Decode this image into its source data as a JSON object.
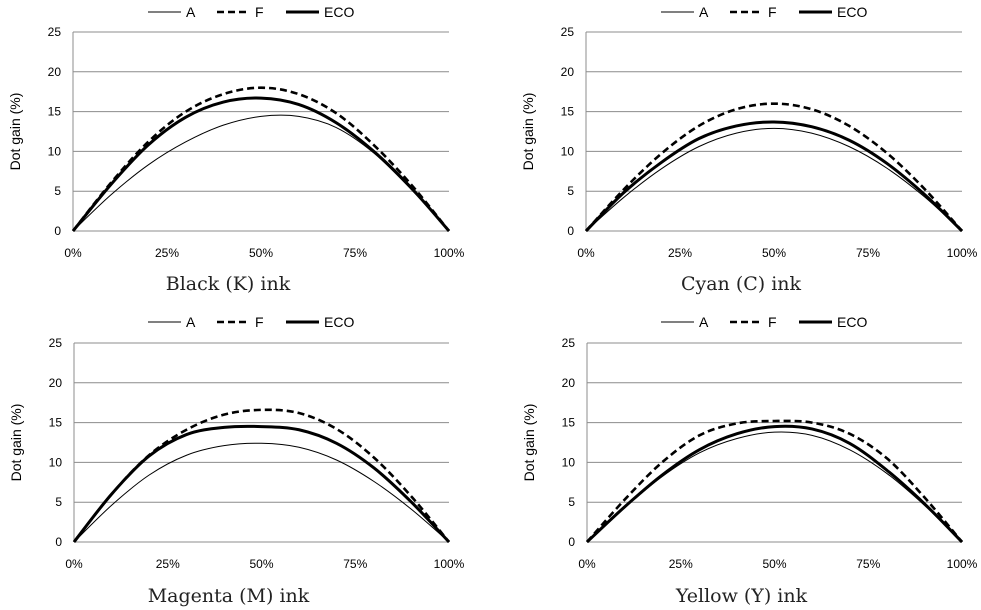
{
  "chart_data": [
    {
      "type": "line",
      "caption": "Black (K) ink",
      "ylabel": "Dot gain (%)",
      "ylim": [
        0,
        25
      ],
      "yticks": [
        "0",
        "5",
        "10",
        "15",
        "20",
        "25"
      ],
      "xticks": [
        "0%",
        "25%",
        "50%",
        "75%",
        "100%"
      ],
      "x": [
        0,
        10,
        20,
        30,
        40,
        50,
        60,
        70,
        80,
        90,
        100
      ],
      "legend": "top",
      "grid": true,
      "series": [
        {
          "name": "A",
          "style": "thin",
          "values": [
            0,
            4.5,
            8.3,
            11.2,
            13.3,
            14.4,
            14.4,
            13.0,
            9.8,
            5.2,
            0
          ]
        },
        {
          "name": "F",
          "style": "dashed",
          "values": [
            0,
            6.0,
            11.2,
            15.0,
            17.2,
            18.0,
            17.2,
            14.8,
            10.8,
            5.8,
            0
          ]
        },
        {
          "name": "ECO",
          "style": "thick",
          "values": [
            0,
            5.8,
            10.8,
            14.3,
            16.2,
            16.7,
            15.9,
            13.6,
            10.0,
            5.4,
            0
          ]
        }
      ]
    },
    {
      "type": "line",
      "caption": "Cyan (C) ink",
      "ylabel": "Dot gain (%)",
      "ylim": [
        0,
        25
      ],
      "yticks": [
        "0",
        "5",
        "10",
        "15",
        "20",
        "25"
      ],
      "xticks": [
        "0%",
        "25%",
        "50%",
        "75%",
        "100%"
      ],
      "x": [
        0,
        10,
        20,
        30,
        40,
        50,
        60,
        70,
        80,
        90,
        100
      ],
      "legend": "top",
      "grid": true,
      "series": [
        {
          "name": "A",
          "style": "thin",
          "values": [
            0,
            4.2,
            7.8,
            10.6,
            12.3,
            12.9,
            12.3,
            10.6,
            7.9,
            4.3,
            0
          ]
        },
        {
          "name": "F",
          "style": "dashed",
          "values": [
            0,
            5.2,
            9.7,
            13.2,
            15.3,
            16.0,
            15.3,
            13.2,
            9.8,
            5.3,
            0
          ]
        },
        {
          "name": "ECO",
          "style": "thick",
          "values": [
            0,
            4.8,
            8.6,
            11.6,
            13.2,
            13.7,
            13.1,
            11.4,
            8.5,
            4.6,
            0
          ]
        }
      ]
    },
    {
      "type": "line",
      "caption": "Magenta (M) ink",
      "ylabel": "Dot gain (%)",
      "ylim": [
        0,
        25
      ],
      "yticks": [
        "0",
        "5",
        "10",
        "15",
        "20",
        "25"
      ],
      "xticks": [
        "0%",
        "25%",
        "50%",
        "75%",
        "100%"
      ],
      "x": [
        0,
        10,
        20,
        30,
        40,
        50,
        60,
        70,
        80,
        90,
        100
      ],
      "legend": "top",
      "grid": true,
      "series": [
        {
          "name": "A",
          "style": "thin",
          "values": [
            0,
            4.6,
            8.4,
            10.9,
            12.1,
            12.4,
            11.9,
            10.3,
            7.6,
            4.1,
            0
          ]
        },
        {
          "name": "F",
          "style": "dashed",
          "values": [
            0,
            6.0,
            10.9,
            14.1,
            16.0,
            16.6,
            16.2,
            14.2,
            10.6,
            5.7,
            0
          ]
        },
        {
          "name": "ECO",
          "style": "thick",
          "values": [
            0,
            6.0,
            10.8,
            13.5,
            14.4,
            14.5,
            14.1,
            12.4,
            9.3,
            5.0,
            0
          ]
        }
      ]
    },
    {
      "type": "line",
      "caption": "Yellow (Y) ink",
      "ylabel": "Dot gain (%)",
      "ylim": [
        0,
        25
      ],
      "yticks": [
        "0",
        "5",
        "10",
        "15",
        "20",
        "25"
      ],
      "xticks": [
        "0%",
        "25%",
        "50%",
        "75%",
        "100%"
      ],
      "x": [
        0,
        10,
        20,
        30,
        40,
        50,
        60,
        70,
        80,
        90,
        100
      ],
      "legend": "top",
      "grid": true,
      "series": [
        {
          "name": "A",
          "style": "thin",
          "values": [
            0,
            4.3,
            8.2,
            11.2,
            13.0,
            13.8,
            13.4,
            11.6,
            8.6,
            4.6,
            0
          ]
        },
        {
          "name": "F",
          "style": "dashed",
          "values": [
            0,
            5.3,
            10.0,
            13.4,
            14.9,
            15.2,
            15.0,
            13.6,
            10.5,
            5.6,
            0
          ]
        },
        {
          "name": "ECO",
          "style": "thick",
          "values": [
            0,
            4.4,
            8.4,
            11.6,
            13.6,
            14.5,
            14.2,
            12.4,
            9.0,
            4.8,
            0
          ]
        }
      ]
    }
  ]
}
